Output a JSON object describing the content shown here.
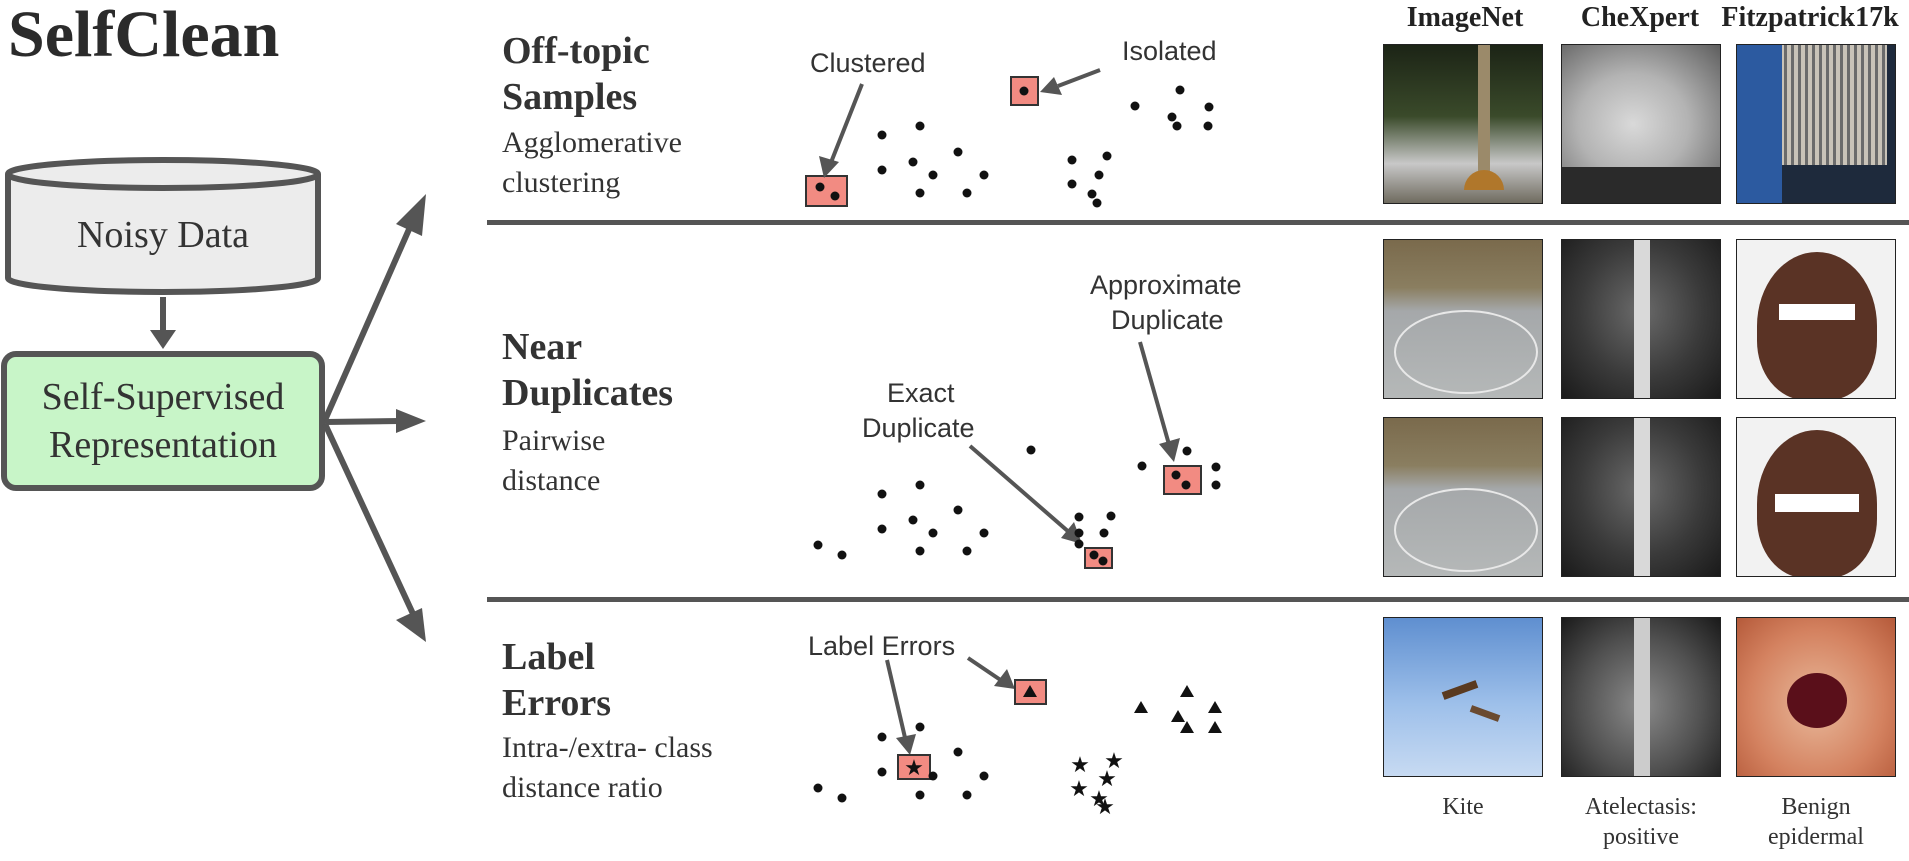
{
  "title": "SelfClean",
  "pipeline": {
    "data_node": "Noisy Data",
    "repr_node_line1": "Self-Supervised",
    "repr_node_line2": "Representation",
    "colors": {
      "data_fill": "#eeeeee",
      "repr_fill": "#c8f5c8",
      "stroke": "#555555"
    }
  },
  "columns": [
    "ImageNet",
    "CheXpert",
    "Fitzpatrick17k"
  ],
  "sections": [
    {
      "title_line1": "Off-topic",
      "title_line2": "Samples",
      "desc_line1": "Agglomerative",
      "desc_line2": "clustering",
      "annotations": [
        "Clustered",
        "Isolated"
      ]
    },
    {
      "title_line1": "Near",
      "title_line2": "Duplicates",
      "desc_line1": "Pairwise",
      "desc_line2": "distance",
      "annotations": [
        "Approximate",
        "Duplicate",
        "Exact",
        "Duplicate"
      ]
    },
    {
      "title_line1": "Label",
      "title_line2": "Errors",
      "desc_line1": "Intra-/extra- class",
      "desc_line2": "distance ratio",
      "annotations": [
        "Label Errors"
      ]
    }
  ],
  "captions": [
    {
      "line1": "Kite",
      "line2": ""
    },
    {
      "line1": "Atelectasis:",
      "line2": "positive"
    },
    {
      "line1": "Benign",
      "line2": "epidermal"
    }
  ],
  "highlight_color": "#f28b82"
}
